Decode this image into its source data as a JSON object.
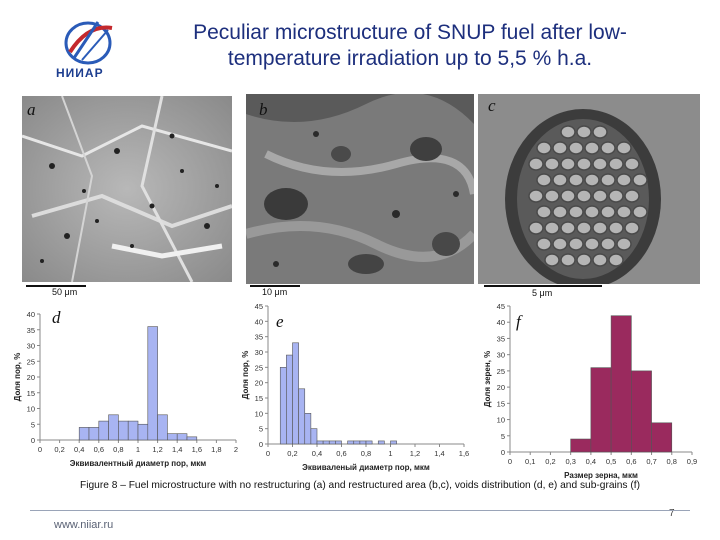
{
  "header": {
    "logo_text": "НИИАР",
    "title_line1": "Peculiar microstructure of SNUP fuel after low-",
    "title_line2": "temperature irradiation up to 5,5 % h.a."
  },
  "panels": {
    "a": {
      "letter": "a",
      "scale": "50 μm"
    },
    "b": {
      "letter": "b",
      "scale": "10 μm"
    },
    "c": {
      "letter": "c",
      "scale": "5 μm"
    },
    "d": {
      "letter": "d"
    },
    "e": {
      "letter": "e"
    },
    "f": {
      "letter": "f"
    }
  },
  "chart_data": [
    {
      "type": "bar",
      "panel": "d",
      "xlabel": "Эквивалентный диаметр пор, мкм",
      "ylabel": "Доля пор, %",
      "x_ticks": [
        "0",
        "0,2",
        "0,4",
        "0,6",
        "0,8",
        "1",
        "1,2",
        "1,4",
        "1,6",
        "1,8",
        "2"
      ],
      "y_ticks": [
        "0",
        "5",
        "10",
        "15",
        "20",
        "25",
        "30",
        "35",
        "40"
      ],
      "xlim": [
        0,
        2
      ],
      "ylim": [
        0,
        40
      ],
      "bin_edges": [
        0.4,
        0.5,
        0.6,
        0.7,
        0.8,
        0.9,
        1.0,
        1.1,
        1.2,
        1.3,
        1.4,
        1.5,
        1.6
      ],
      "values": [
        4,
        4,
        6,
        8,
        6,
        6,
        5,
        36,
        8,
        2,
        2,
        1
      ],
      "color": "#a8b4f2"
    },
    {
      "type": "bar",
      "panel": "e",
      "xlabel": "Эквиваленый диаметр пор, мкм",
      "ylabel": "Доля пор, %",
      "x_ticks": [
        "0",
        "0,2",
        "0,4",
        "0,6",
        "0,8",
        "1",
        "1,2",
        "1,4",
        "1,6"
      ],
      "y_ticks": [
        "0",
        "5",
        "10",
        "15",
        "20",
        "25",
        "30",
        "35",
        "40",
        "45"
      ],
      "xlim": [
        0,
        1.6
      ],
      "ylim": [
        0,
        45
      ],
      "bin_edges": [
        0.1,
        0.15,
        0.2,
        0.25,
        0.3,
        0.35,
        0.4,
        0.45,
        0.5,
        0.55,
        0.6,
        0.65,
        0.7,
        0.75,
        0.8,
        0.85,
        0.9,
        0.95,
        1.0,
        1.05
      ],
      "values": [
        25,
        29,
        33,
        18,
        10,
        5,
        1,
        1,
        1,
        1,
        0,
        1,
        1,
        1,
        1,
        0,
        1,
        0,
        1
      ],
      "color": "#a8b4f2"
    },
    {
      "type": "bar",
      "panel": "f",
      "xlabel": "Размер зерна, мкм",
      "ylabel": "Доля зерен, %",
      "x_ticks": [
        "0",
        "0,1",
        "0,2",
        "0,3",
        "0,4",
        "0,5",
        "0,6",
        "0,7",
        "0,8",
        "0,9"
      ],
      "y_ticks": [
        "0",
        "5",
        "10",
        "15",
        "20",
        "25",
        "30",
        "35",
        "40",
        "45"
      ],
      "xlim": [
        0,
        0.9
      ],
      "ylim": [
        0,
        45
      ],
      "bin_edges": [
        0.3,
        0.4,
        0.5,
        0.6,
        0.7,
        0.8
      ],
      "values": [
        4,
        26,
        42,
        25,
        9
      ],
      "color": "#9a2a5e"
    }
  ],
  "caption": "Figure 8 – Fuel microstructure with no restructuring (a) and restructured area (b,c), voids distribution (d, e) and sub-grains (f)",
  "footer": {
    "url": "www.niiar.ru",
    "page_number": "7"
  }
}
